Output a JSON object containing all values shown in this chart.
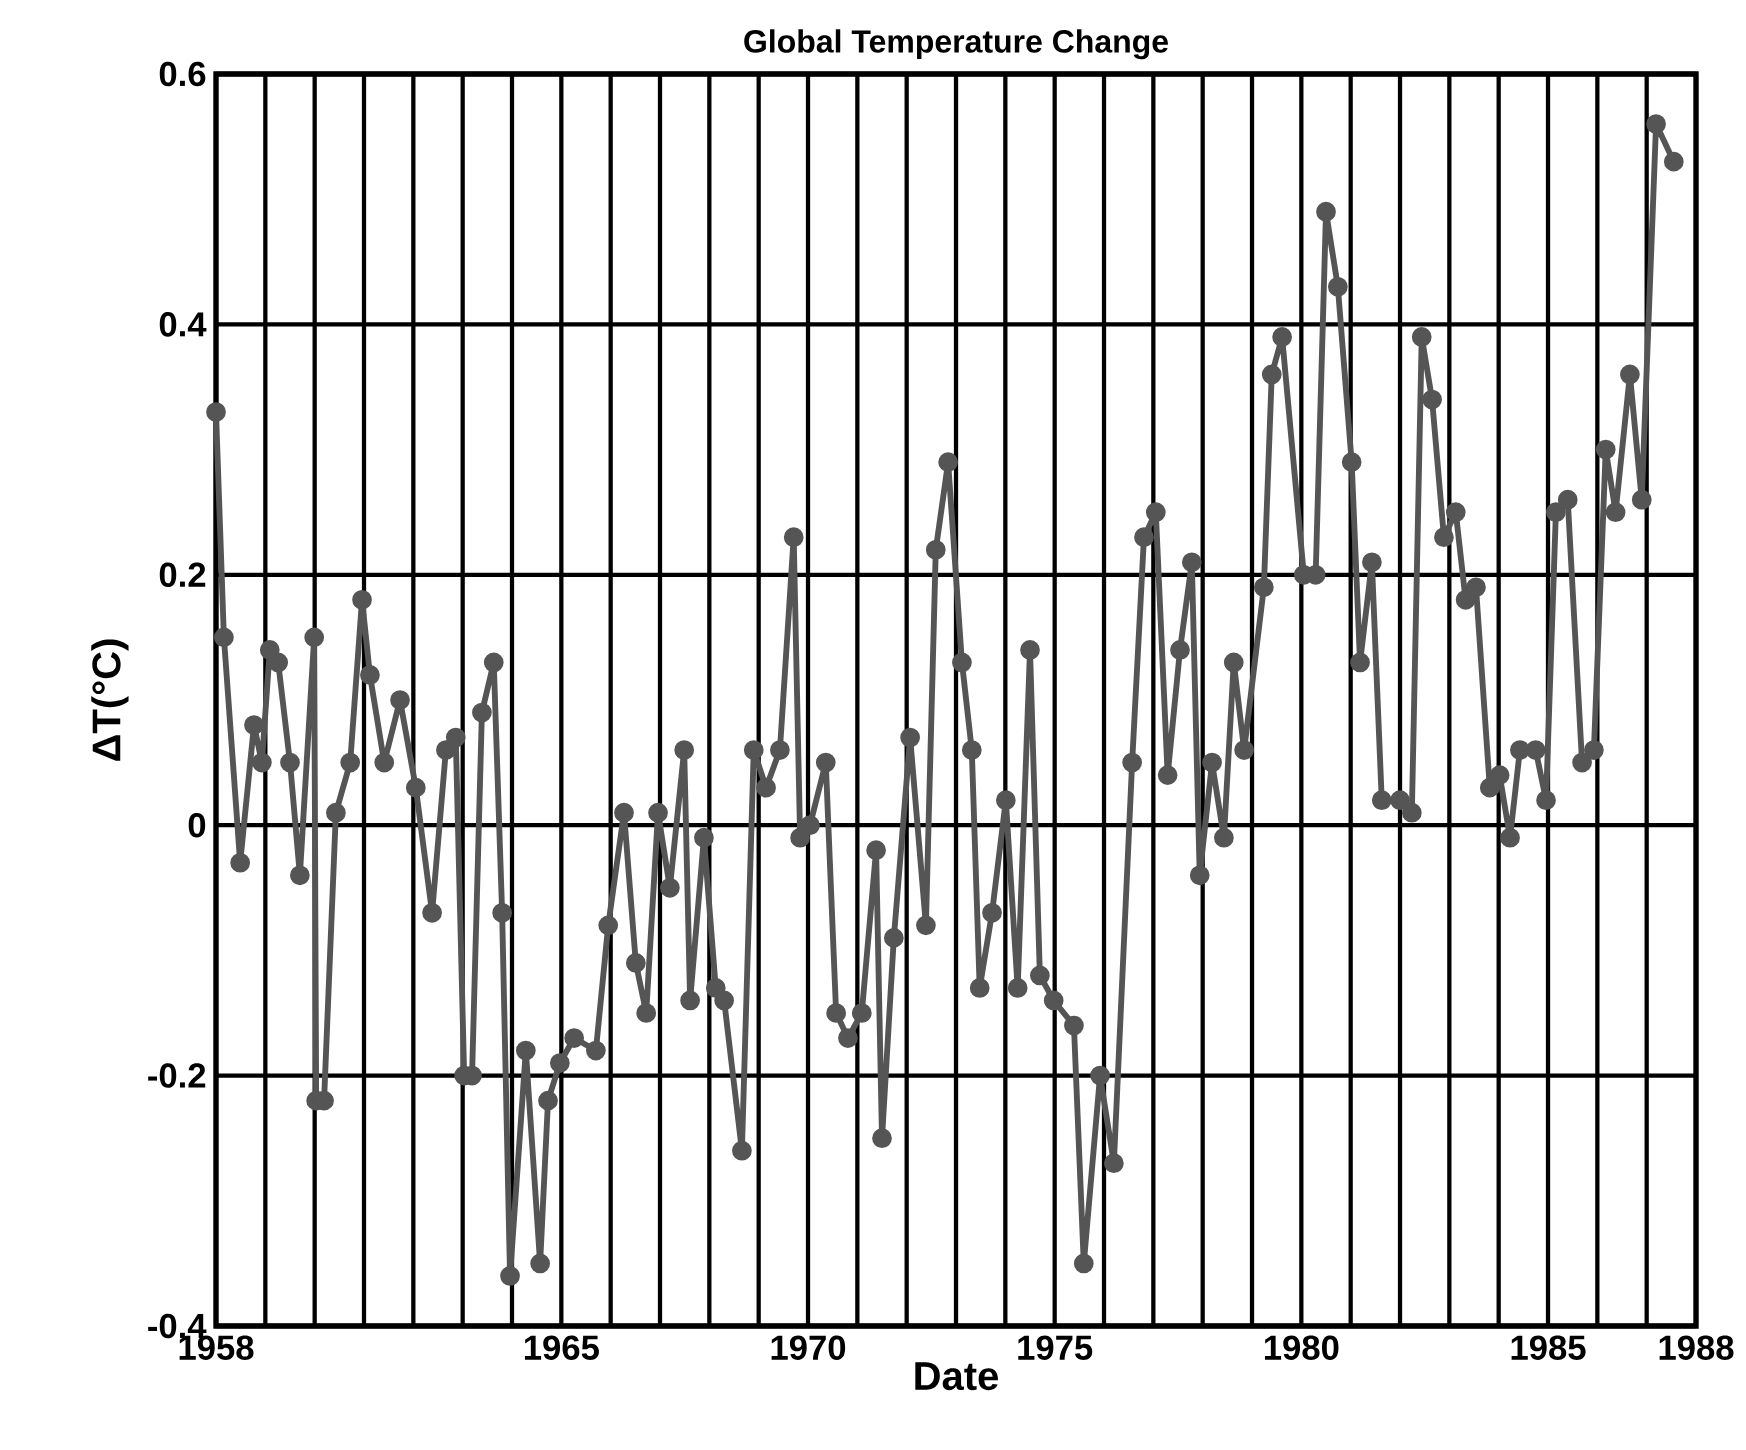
{
  "chart_data": {
    "type": "line",
    "title": "Global Temperature Change",
    "xlabel": "Date",
    "ylabel": "ΔT(°C)",
    "xlim": [
      1958,
      1988
    ],
    "ylim": [
      -0.4,
      0.6
    ],
    "xticks": [
      1958,
      {
        "value": 1959,
        "label": null
      },
      {
        "value": 1960,
        "label": null
      },
      {
        "value": 1961,
        "label": null
      },
      {
        "value": 1962,
        "label": null
      },
      {
        "value": 1963,
        "label": null
      },
      {
        "value": 1964,
        "label": null
      },
      1965,
      {
        "value": 1966,
        "label": null
      },
      {
        "value": 1967,
        "label": null
      },
      {
        "value": 1968,
        "label": null
      },
      {
        "value": 1969,
        "label": null
      },
      1970,
      {
        "value": 1971,
        "label": null
      },
      {
        "value": 1972,
        "label": null
      },
      {
        "value": 1973,
        "label": null
      },
      {
        "value": 1974,
        "label": null
      },
      1975,
      {
        "value": 1976,
        "label": null
      },
      {
        "value": 1977,
        "label": null
      },
      {
        "value": 1978,
        "label": null
      },
      {
        "value": 1979,
        "label": null
      },
      1980,
      {
        "value": 1981,
        "label": null
      },
      {
        "value": 1982,
        "label": null
      },
      {
        "value": 1983,
        "label": null
      },
      {
        "value": 1984,
        "label": null
      },
      1985,
      {
        "value": 1986,
        "label": null
      },
      {
        "value": 1987,
        "label": null
      },
      1988
    ],
    "yticks": [
      -0.4,
      -0.2,
      0,
      0.2,
      0.4,
      0.6
    ],
    "grid": true,
    "marker": "circle",
    "line_style": "solid",
    "x": [
      1958.0,
      1958.16,
      1958.49,
      1958.77,
      1958.93,
      1959.09,
      1959.26,
      1959.5,
      1959.7,
      1959.99,
      1960.03,
      1960.19,
      1960.43,
      1960.72,
      1960.96,
      1961.12,
      1961.41,
      1961.73,
      1962.05,
      1962.38,
      1962.66,
      1962.86,
      1963.03,
      1963.19,
      1963.39,
      1963.63,
      1963.8,
      1963.96,
      1964.28,
      1964.57,
      1964.73,
      1964.97,
      1965.26,
      1965.7,
      1965.95,
      1966.27,
      1966.51,
      1966.72,
      1966.96,
      1967.2,
      1967.49,
      1967.61,
      1967.89,
      1968.13,
      1968.3,
      1968.66,
      1968.9,
      1969.15,
      1969.43,
      1969.71,
      1969.84,
      1970.04,
      1970.36,
      1970.57,
      1970.81,
      1971.09,
      1971.38,
      1971.5,
      1971.74,
      1972.07,
      1972.39,
      1972.59,
      1972.84,
      1973.12,
      1973.32,
      1973.48,
      1973.73,
      1974.01,
      1974.25,
      1974.5,
      1974.7,
      1974.98,
      1975.39,
      1975.59,
      1975.92,
      1976.2,
      1976.57,
      1976.81,
      1977.05,
      1977.29,
      1977.54,
      1977.78,
      1977.94,
      1978.19,
      1978.43,
      1978.63,
      1978.84,
      1979.24,
      1979.4,
      1979.61,
      1980.05,
      1980.29,
      1980.5,
      1980.74,
      1981.02,
      1981.19,
      1981.43,
      1981.63,
      1982.0,
      1982.24,
      1982.44,
      1982.65,
      1982.89,
      1983.13,
      1983.33,
      1983.54,
      1983.82,
      1984.02,
      1984.23,
      1984.43,
      1984.75,
      1984.96,
      1985.16,
      1985.4,
      1985.69,
      1985.93,
      1986.17,
      1986.37,
      1986.66,
      1986.9,
      1987.19,
      1987.55
    ],
    "series": [
      {
        "color": "#555555",
        "values": [
          0.33,
          0.15,
          -0.03,
          0.08,
          0.05,
          0.14,
          0.13,
          0.05,
          -0.04,
          0.15,
          -0.22,
          -0.22,
          0.01,
          0.05,
          0.18,
          0.12,
          0.05,
          0.1,
          0.03,
          -0.07,
          0.06,
          0.07,
          -0.2,
          -0.2,
          0.09,
          0.13,
          -0.07,
          -0.36,
          -0.18,
          -0.35,
          -0.22,
          -0.19,
          -0.17,
          -0.18,
          -0.08,
          0.01,
          -0.11,
          -0.15,
          0.01,
          -0.05,
          0.06,
          -0.14,
          -0.01,
          -0.13,
          -0.14,
          -0.26,
          0.06,
          0.03,
          0.06,
          0.23,
          -0.01,
          0.0,
          0.05,
          -0.15,
          -0.17,
          -0.15,
          -0.02,
          -0.25,
          -0.09,
          0.07,
          -0.08,
          0.22,
          0.29,
          0.13,
          0.06,
          -0.13,
          -0.07,
          0.02,
          -0.13,
          0.14,
          -0.12,
          -0.14,
          -0.16,
          -0.35,
          -0.2,
          -0.27,
          0.05,
          0.23,
          0.25,
          0.04,
          0.14,
          0.21,
          -0.04,
          0.05,
          -0.01,
          0.13,
          0.06,
          0.19,
          0.36,
          0.39,
          0.2,
          0.2,
          0.49,
          0.43,
          0.29,
          0.13,
          0.21,
          0.02,
          0.02,
          0.01,
          0.39,
          0.34,
          0.23,
          0.25,
          0.18,
          0.19,
          0.03,
          0.04,
          -0.01,
          0.06,
          0.06,
          0.02,
          0.25,
          0.26,
          0.05,
          0.06,
          0.3,
          0.25,
          0.36,
          0.26,
          0.56,
          0.53
        ]
      }
    ]
  }
}
